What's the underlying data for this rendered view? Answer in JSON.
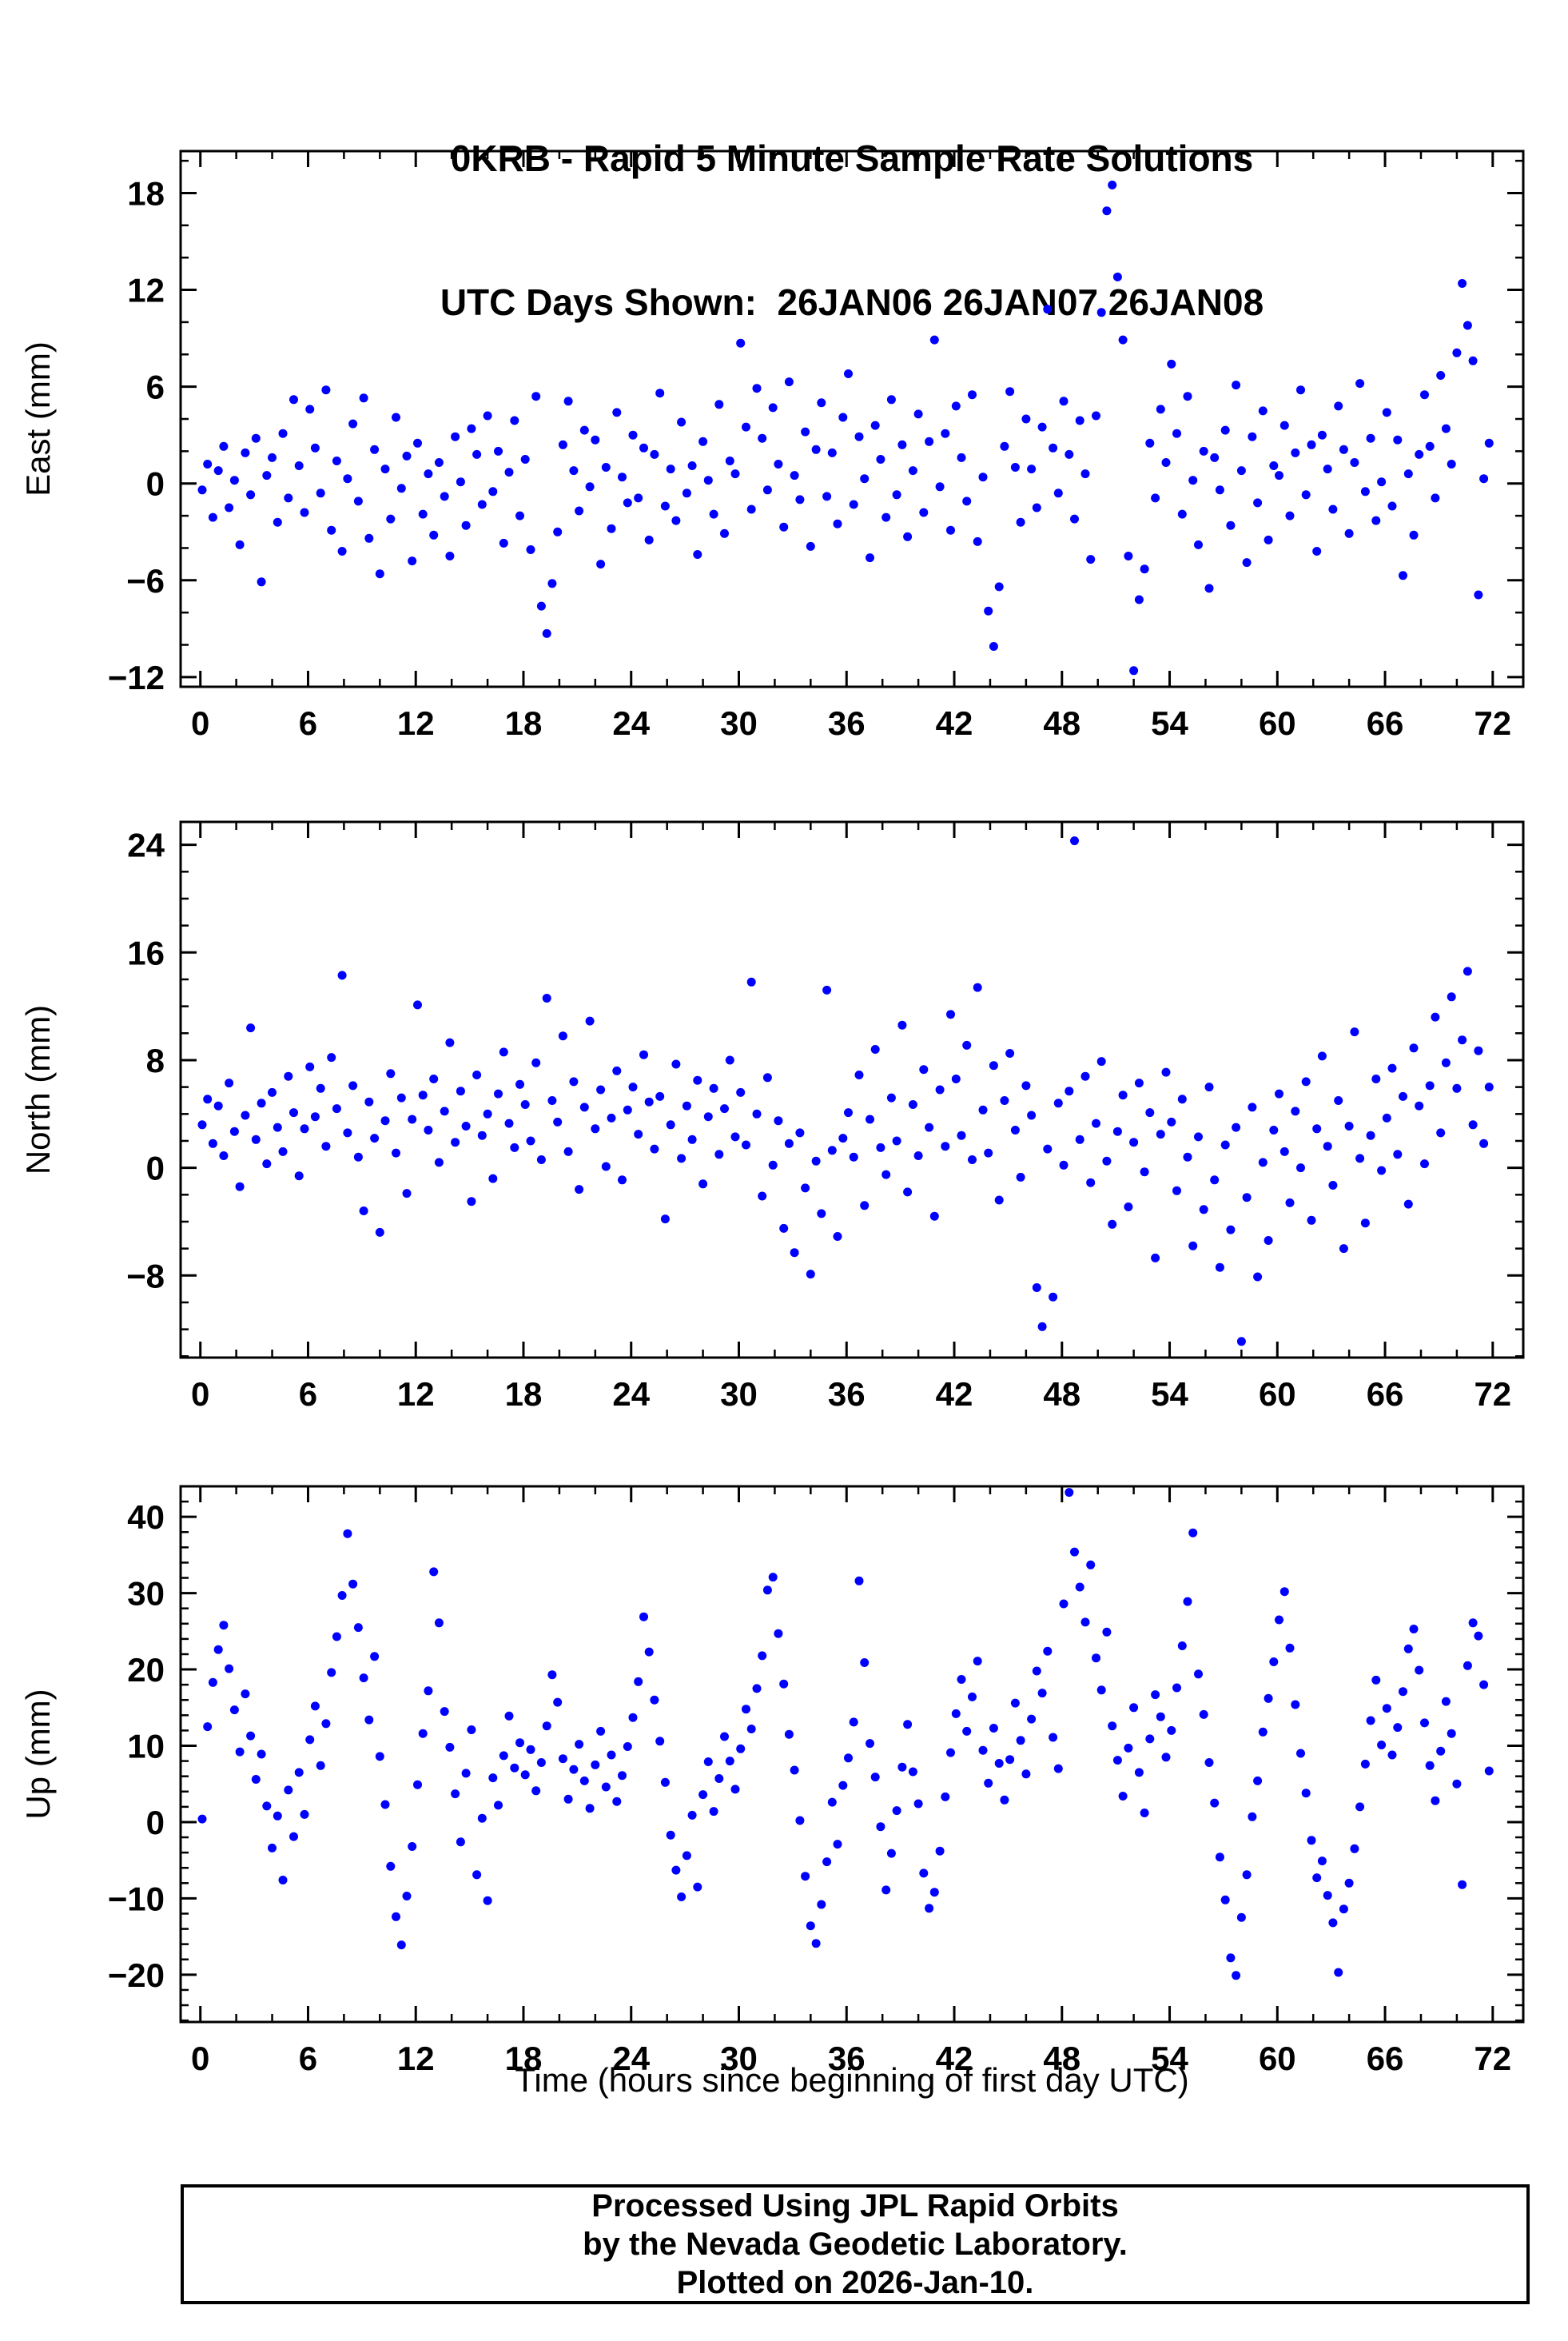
{
  "title": {
    "line1": "0KRB - Rapid 5 Minute Sample Rate Solutions",
    "line2": "UTC Days Shown:  26JAN06 26JAN07 26JAN08"
  },
  "colors": {
    "dot": "#0000ff",
    "axis": "#000000",
    "background": "#ffffff"
  },
  "x_axis": {
    "label": "Time (hours since beginning of first day UTC)",
    "xticks": [
      0,
      6,
      12,
      18,
      24,
      30,
      36,
      42,
      48,
      54,
      60,
      66,
      72
    ],
    "xlim": [
      -1.1,
      73.7
    ],
    "x_minor_step": 2
  },
  "footer": {
    "line1": "Processed Using JPL Rapid Orbits",
    "line2": "by the Nevada Geodetic Laboratory.",
    "line3": "Plotted on 2026-Jan-10."
  },
  "chart_data": [
    {
      "type": "scatter",
      "name": "east",
      "ylabel": "East (mm)",
      "yticks": [
        -12,
        -6,
        0,
        6,
        12,
        18
      ],
      "y_minor_step": 2,
      "ylim": [
        -12.6,
        20.6
      ],
      "x_start": 0.1,
      "x_step": 0.3,
      "values": [
        -0.4,
        1.2,
        -2.1,
        0.8,
        2.3,
        -1.5,
        0.2,
        -3.8,
        1.9,
        -0.7,
        2.8,
        -6.1,
        0.5,
        1.6,
        -2.4,
        3.1,
        -0.9,
        5.2,
        1.1,
        -1.8,
        4.6,
        2.2,
        -0.6,
        5.8,
        -2.9,
        1.4,
        -4.2,
        0.3,
        3.7,
        -1.1,
        5.3,
        -3.4,
        2.1,
        -5.6,
        0.9,
        -2.2,
        4.1,
        -0.3,
        1.7,
        -4.8,
        2.5,
        -1.9,
        0.6,
        -3.2,
        1.3,
        -0.8,
        -4.5,
        2.9,
        0.1,
        -2.6,
        3.4,
        1.8,
        -1.3,
        4.2,
        -0.5,
        2.0,
        -3.7,
        0.7,
        3.9,
        -2.0,
        1.5,
        -4.1,
        5.4,
        -7.6,
        -9.3,
        -6.2,
        -3.0,
        2.4,
        5.1,
        0.8,
        -1.7,
        3.3,
        -0.2,
        2.7,
        -5.0,
        1.0,
        -2.8,
        4.4,
        0.4,
        -1.2,
        3.0,
        -0.9,
        2.2,
        -3.5,
        1.8,
        5.6,
        -1.4,
        0.9,
        -2.3,
        3.8,
        -0.6,
        1.1,
        -4.4,
        2.6,
        0.2,
        -1.9,
        4.9,
        -3.1,
        1.4,
        0.6,
        8.7,
        3.5,
        -1.6,
        5.9,
        2.8,
        -0.4,
        4.7,
        1.2,
        -2.7,
        6.3,
        0.5,
        -1.0,
        3.2,
        -3.9,
        2.1,
        5.0,
        -0.8,
        1.9,
        -2.5,
        4.1,
        6.8,
        -1.3,
        2.9,
        0.3,
        -4.6,
        3.6,
        1.5,
        -2.1,
        5.2,
        -0.7,
        2.4,
        -3.3,
        0.8,
        4.3,
        -1.8,
        2.6,
        8.9,
        -0.2,
        3.1,
        -2.9,
        4.8,
        1.6,
        -1.1,
        5.5,
        -3.6,
        0.4,
        -7.9,
        -10.1,
        -6.4,
        2.3,
        5.7,
        1.0,
        -2.4,
        4.0,
        0.9,
        -1.5,
        3.5,
        10.8,
        2.2,
        -0.6,
        5.1,
        1.8,
        -2.2,
        3.9,
        0.6,
        -4.7,
        4.2,
        10.6,
        16.9,
        18.5,
        12.8,
        8.9,
        -4.5,
        -11.6,
        -7.2,
        -5.3,
        2.5,
        -0.9,
        4.6,
        1.3,
        7.4,
        3.1,
        -1.9,
        5.4,
        0.2,
        -3.8,
        2.0,
        -6.5,
        1.6,
        -0.4,
        3.3,
        -2.6,
        6.1,
        0.8,
        -4.9,
        2.9,
        -1.2,
        4.5,
        -3.5,
        1.1,
        0.5,
        3.6,
        -2.0,
        1.9,
        5.8,
        -0.7,
        2.4,
        -4.2,
        3.0,
        0.9,
        -1.6,
        4.8,
        2.1,
        -3.1,
        1.3,
        6.2,
        -0.5,
        2.8,
        -2.3,
        0.1,
        4.4,
        -1.4,
        2.7,
        -5.7,
        0.6,
        -3.2,
        1.8,
        5.5,
        2.3,
        -0.9,
        6.7,
        3.4,
        1.2,
        8.1,
        12.4,
        9.8,
        7.6,
        -6.9,
        0.3,
        2.5
      ]
    },
    {
      "type": "scatter",
      "name": "north",
      "ylabel": "North (mm)",
      "yticks": [
        -8,
        0,
        8,
        16,
        24
      ],
      "y_minor_step": 2,
      "ylim": [
        -14.1,
        25.7
      ],
      "x_start": 0.1,
      "x_step": 0.3,
      "values": [
        3.2,
        5.1,
        1.8,
        4.6,
        0.9,
        6.3,
        2.7,
        -1.4,
        3.9,
        10.4,
        2.1,
        4.8,
        0.3,
        5.6,
        3.0,
        1.2,
        6.8,
        4.1,
        -0.6,
        2.9,
        7.5,
        3.8,
        5.9,
        1.6,
        8.2,
        4.4,
        14.3,
        2.6,
        6.1,
        0.8,
        -3.2,
        4.9,
        2.2,
        -4.8,
        3.5,
        7.0,
        1.1,
        5.2,
        -1.9,
        3.6,
        12.1,
        5.4,
        2.8,
        6.6,
        0.4,
        4.2,
        9.3,
        1.9,
        5.7,
        3.1,
        -2.5,
        6.9,
        2.4,
        4.0,
        -0.8,
        5.5,
        8.6,
        3.3,
        1.5,
        6.2,
        4.7,
        2.0,
        7.8,
        0.6,
        12.6,
        5.0,
        3.4,
        9.8,
        1.2,
        6.4,
        -1.6,
        4.5,
        10.9,
        2.9,
        5.8,
        0.1,
        3.7,
        7.2,
        -0.9,
        4.3,
        6.0,
        2.5,
        8.4,
        4.9,
        1.4,
        5.3,
        -3.8,
        3.2,
        7.7,
        0.7,
        4.6,
        2.1,
        6.5,
        -1.2,
        3.8,
        5.9,
        1.0,
        4.4,
        8.0,
        2.3,
        5.6,
        1.7,
        13.8,
        4.0,
        -2.1,
        6.7,
        0.2,
        3.5,
        -4.5,
        1.8,
        -6.3,
        2.6,
        -1.5,
        -7.9,
        0.5,
        -3.4,
        13.2,
        1.3,
        -5.1,
        2.2,
        4.1,
        0.8,
        6.9,
        -2.8,
        3.6,
        8.8,
        1.5,
        -0.5,
        5.2,
        2.0,
        10.6,
        -1.8,
        4.7,
        0.9,
        7.3,
        3.0,
        -3.6,
        5.8,
        1.6,
        11.4,
        6.6,
        2.4,
        9.1,
        0.6,
        13.4,
        4.3,
        1.1,
        7.6,
        -2.4,
        5.0,
        8.5,
        2.8,
        -0.7,
        6.1,
        3.9,
        -8.9,
        -11.8,
        1.4,
        -9.6,
        4.8,
        0.2,
        5.7,
        24.3,
        2.1,
        6.8,
        -1.1,
        3.3,
        7.9,
        0.5,
        -4.2,
        2.7,
        5.4,
        -2.9,
        1.9,
        6.3,
        -0.3,
        4.1,
        -6.7,
        2.5,
        7.1,
        3.4,
        -1.7,
        5.1,
        0.8,
        -5.8,
        2.3,
        -3.1,
        6.0,
        -0.9,
        -7.4,
        1.7,
        -4.6,
        3.0,
        -12.9,
        -2.2,
        4.5,
        -8.1,
        0.4,
        -5.4,
        2.8,
        5.5,
        1.2,
        -2.6,
        4.2,
        0.0,
        6.4,
        -3.9,
        2.9,
        8.3,
        1.6,
        -1.3,
        5.0,
        -6.0,
        3.1,
        10.1,
        0.7,
        -4.1,
        2.4,
        6.6,
        -0.2,
        3.7,
        7.4,
        1.0,
        5.3,
        -2.7,
        8.9,
        4.6,
        0.3,
        6.1,
        11.2,
        2.6,
        7.8,
        12.7,
        5.9,
        9.5,
        14.6,
        3.2,
        8.7,
        1.8,
        6.0
      ]
    },
    {
      "type": "scatter",
      "name": "up",
      "ylabel": "Up (mm)",
      "yticks": [
        -20,
        -10,
        0,
        10,
        20,
        30,
        40
      ],
      "y_minor_step": 2,
      "ylim": [
        -26.2,
        44
      ],
      "x_start": 0.1,
      "x_step": 0.3,
      "values": [
        0.4,
        12.5,
        18.3,
        22.6,
        25.8,
        20.1,
        14.7,
        9.2,
        16.8,
        11.3,
        5.6,
        8.9,
        2.1,
        -3.4,
        0.8,
        -7.6,
        4.2,
        -1.9,
        6.5,
        1.0,
        10.8,
        15.2,
        7.4,
        12.9,
        19.6,
        24.3,
        29.7,
        37.8,
        31.2,
        25.5,
        18.9,
        13.4,
        21.7,
        8.6,
        2.3,
        -5.8,
        -12.4,
        -16.1,
        -9.7,
        -3.2,
        4.9,
        11.6,
        17.2,
        32.8,
        26.1,
        14.5,
        9.8,
        3.7,
        -2.6,
        6.4,
        12.1,
        -6.9,
        0.5,
        -10.3,
        5.8,
        2.2,
        8.7,
        13.9,
        7.1,
        10.4,
        6.2,
        9.5,
        4.1,
        7.8,
        12.6,
        19.3,
        15.7,
        8.3,
        3.0,
        6.9,
        10.2,
        5.4,
        1.8,
        7.5,
        11.9,
        4.6,
        8.8,
        2.7,
        6.1,
        9.9,
        13.7,
        18.4,
        26.9,
        22.3,
        16.0,
        10.6,
        5.2,
        -1.7,
        -6.3,
        -9.8,
        -4.4,
        0.9,
        -8.5,
        3.6,
        7.9,
        1.4,
        5.7,
        11.2,
        8.0,
        4.3,
        9.6,
        14.8,
        12.2,
        17.5,
        21.8,
        30.4,
        32.1,
        24.7,
        18.1,
        11.5,
        6.8,
        0.2,
        -7.1,
        -13.6,
        -15.9,
        -10.8,
        -5.2,
        2.6,
        -2.9,
        4.8,
        8.4,
        13.1,
        31.6,
        20.9,
        10.3,
        5.9,
        -0.6,
        -8.9,
        -4.1,
        1.5,
        7.2,
        12.8,
        6.6,
        2.4,
        -6.7,
        -11.3,
        -9.2,
        -3.8,
        3.3,
        9.1,
        14.2,
        18.7,
        11.9,
        16.4,
        21.1,
        9.4,
        5.1,
        12.3,
        7.7,
        2.9,
        8.2,
        15.6,
        10.7,
        6.3,
        13.5,
        19.8,
        16.9,
        22.4,
        11.1,
        7.0,
        28.6,
        43.2,
        35.4,
        30.8,
        26.2,
        33.7,
        21.5,
        17.3,
        24.9,
        12.6,
        8.1,
        3.4,
        9.7,
        15.0,
        6.5,
        1.2,
        10.9,
        16.7,
        13.8,
        8.5,
        12.0,
        17.6,
        23.1,
        28.9,
        37.9,
        19.4,
        14.1,
        7.8,
        2.5,
        -4.6,
        -10.2,
        -17.8,
        -20.1,
        -12.5,
        -6.9,
        0.7,
        5.4,
        11.8,
        16.2,
        21.0,
        26.5,
        30.2,
        22.8,
        15.4,
        9.0,
        3.8,
        -2.4,
        -7.3,
        -5.1,
        -9.6,
        -13.2,
        -19.7,
        -11.4,
        -8.0,
        -3.5,
        2.0,
        7.6,
        13.3,
        18.6,
        10.1,
        14.9,
        8.8,
        12.4,
        17.1,
        22.7,
        25.3,
        19.9,
        13.0,
        7.4,
        2.8,
        9.3,
        15.8,
        11.6,
        5.0,
        -8.2,
        20.5,
        26.1,
        24.4,
        18.0,
        6.7
      ]
    }
  ]
}
